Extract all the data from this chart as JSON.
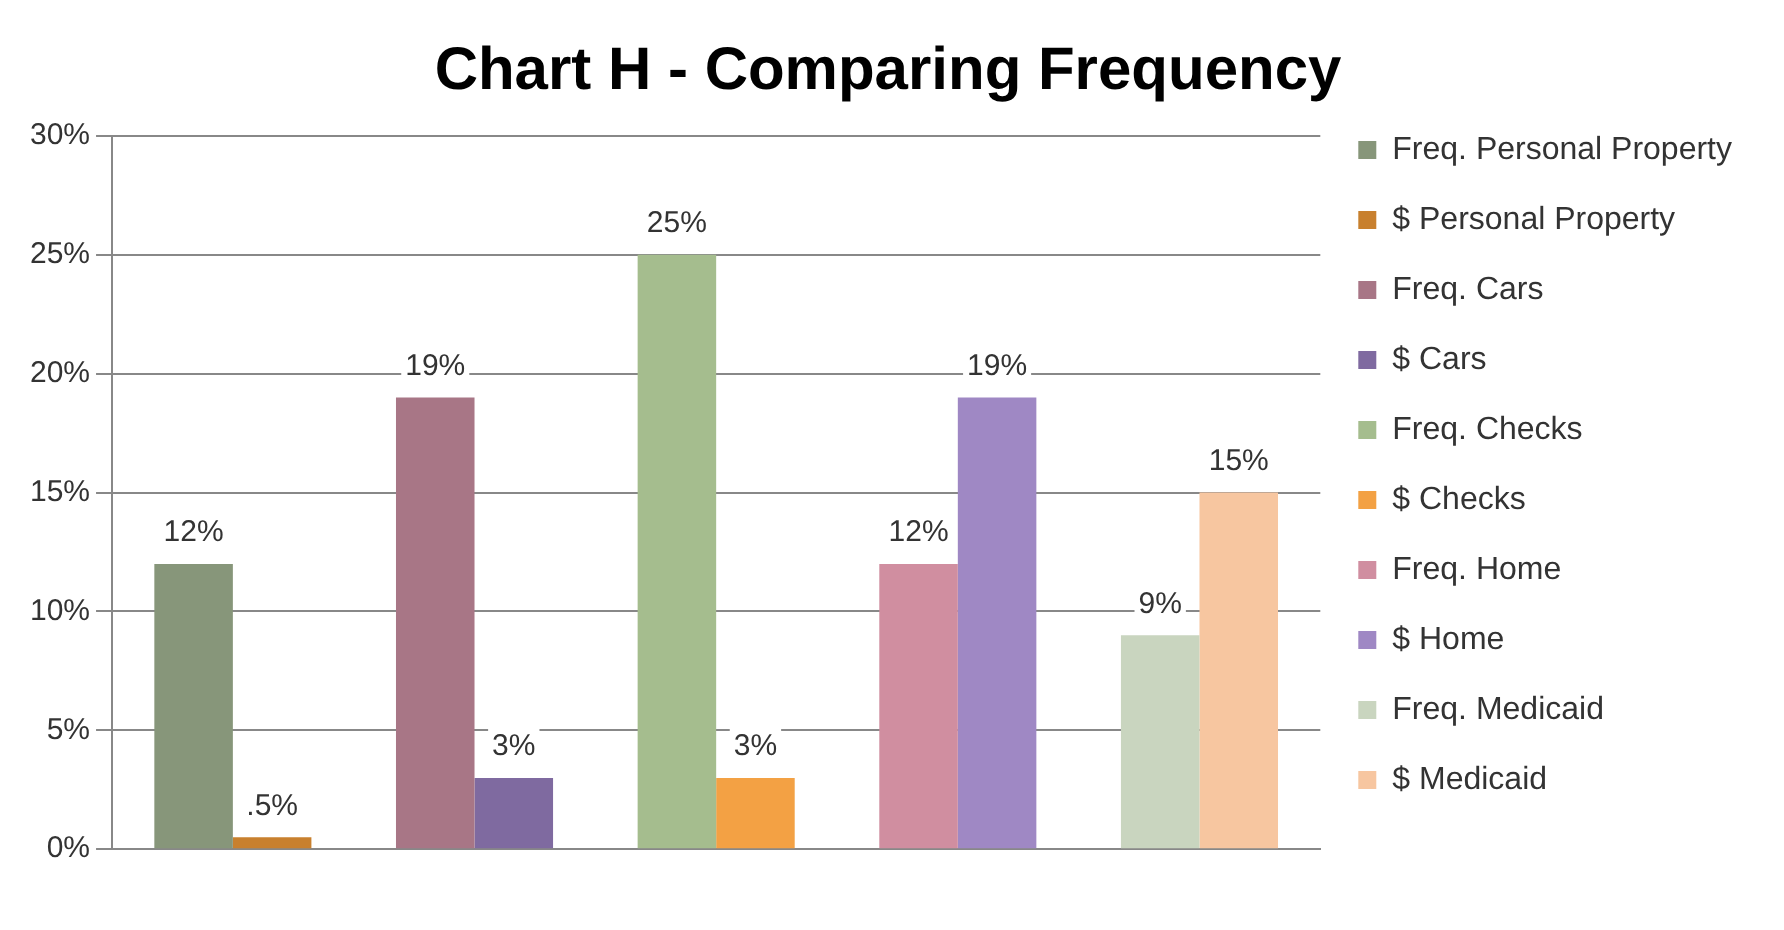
{
  "chart_data": {
    "type": "bar",
    "title": "Chart H - Comparing Frequency",
    "categories": [
      null,
      null,
      null,
      null,
      null
    ],
    "series": [
      {
        "name": "Freq. Personal Property",
        "color": "#87967a",
        "values": [
          12,
          null,
          null,
          null,
          null
        ],
        "value_labels": [
          "12%",
          null,
          null,
          null,
          null
        ]
      },
      {
        "name": "$ Personal Property",
        "color": "#c8802e",
        "values": [
          0.5,
          null,
          null,
          null,
          null
        ],
        "value_labels": [
          ".5%",
          null,
          null,
          null,
          null
        ]
      },
      {
        "name": "Freq. Cars",
        "color": "#a87686",
        "values": [
          null,
          19,
          null,
          null,
          null
        ],
        "value_labels": [
          null,
          "19%",
          null,
          null,
          null
        ]
      },
      {
        "name": "$ Cars",
        "color": "#7f6aa0",
        "values": [
          null,
          3,
          null,
          null,
          null
        ],
        "value_labels": [
          null,
          "3%",
          null,
          null,
          null
        ]
      },
      {
        "name": "Freq. Checks",
        "color": "#a5bd8e",
        "values": [
          null,
          null,
          25,
          null,
          null
        ],
        "value_labels": [
          null,
          null,
          "25%",
          null,
          null
        ]
      },
      {
        "name": "$ Checks",
        "color": "#f3a144",
        "values": [
          null,
          null,
          3,
          null,
          null
        ],
        "value_labels": [
          null,
          null,
          "3%",
          null,
          null
        ]
      },
      {
        "name": "Freq. Home",
        "color": "#d08ea0",
        "values": [
          null,
          null,
          null,
          12,
          null
        ],
        "value_labels": [
          null,
          null,
          null,
          "12%",
          null
        ]
      },
      {
        "name": "$ Home",
        "color": "#9f88c4",
        "values": [
          null,
          null,
          null,
          19,
          null
        ],
        "value_labels": [
          null,
          null,
          null,
          "19%",
          null
        ]
      },
      {
        "name": "Freq. Medicaid",
        "color": "#c9d5bf",
        "values": [
          null,
          null,
          null,
          null,
          9
        ],
        "value_labels": [
          null,
          null,
          null,
          null,
          "9%"
        ]
      },
      {
        "name": "$ Medicaid",
        "color": "#f7c6a0",
        "values": [
          null,
          null,
          null,
          null,
          15
        ],
        "value_labels": [
          null,
          null,
          null,
          null,
          "15%"
        ]
      }
    ],
    "ylim": [
      0,
      30
    ],
    "yticks": [
      {
        "value": 0,
        "label": "0%"
      },
      {
        "value": 5,
        "label": "5%"
      },
      {
        "value": 10,
        "label": "10%"
      },
      {
        "value": 15,
        "label": "15%"
      },
      {
        "value": 20,
        "label": "20%"
      },
      {
        "value": 25,
        "label": "25%"
      },
      {
        "value": 30,
        "label": "30%"
      }
    ],
    "grid": "y",
    "legend": "right"
  }
}
